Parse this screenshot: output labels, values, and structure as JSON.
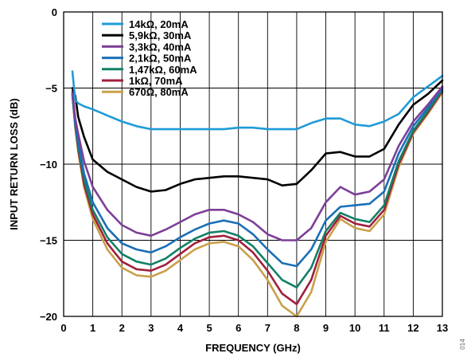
{
  "chart_data": {
    "type": "line",
    "title": "",
    "xlabel": "FREQUENCY (GHz)",
    "ylabel": "INPUT RETURN LOSS (dB)",
    "xlim": [
      0,
      13
    ],
    "ylim": [
      -20,
      0
    ],
    "x_ticks": [
      0,
      1,
      2,
      3,
      4,
      5,
      6,
      7,
      8,
      9,
      10,
      11,
      12,
      13
    ],
    "y_ticks": [
      0,
      -5,
      -10,
      -15,
      -20
    ],
    "grid": true,
    "legend_position": "top-left",
    "figure_code": "014",
    "x": [
      0.3,
      0.4,
      0.5,
      0.7,
      1,
      1.5,
      2,
      2.5,
      3,
      3.5,
      4,
      4.5,
      5,
      5.5,
      6,
      6.5,
      7,
      7.5,
      8,
      8.5,
      9,
      9.5,
      10,
      10.5,
      11,
      11.5,
      12,
      12.5,
      13
    ],
    "series": [
      {
        "name": "14kΩ, 20mA",
        "color": "#1f9bd7",
        "values": [
          -3.9,
          -5.8,
          -6.0,
          -6.2,
          -6.4,
          -6.8,
          -7.2,
          -7.5,
          -7.7,
          -7.7,
          -7.7,
          -7.7,
          -7.7,
          -7.7,
          -7.6,
          -7.6,
          -7.7,
          -7.7,
          -7.7,
          -7.3,
          -7.0,
          -7.0,
          -7.4,
          -7.5,
          -7.2,
          -6.7,
          -5.6,
          -4.9,
          -4.2
        ]
      },
      {
        "name": "5,9kΩ, 30mA",
        "color": "#000000",
        "values": [
          -5.0,
          -5.5,
          -6.9,
          -8.2,
          -9.7,
          -10.5,
          -11.0,
          -11.5,
          -11.8,
          -11.7,
          -11.3,
          -11.0,
          -10.9,
          -10.8,
          -10.8,
          -10.9,
          -11.0,
          -11.4,
          -11.3,
          -10.4,
          -9.3,
          -9.2,
          -9.5,
          -9.5,
          -9.0,
          -7.4,
          -6.1,
          -5.4,
          -4.5
        ]
      },
      {
        "name": "3,3kΩ, 40mA",
        "color": "#7c3f98",
        "values": [
          -5.2,
          -7.0,
          -8.0,
          -9.8,
          -11.5,
          -13.0,
          -14.0,
          -14.5,
          -14.7,
          -14.3,
          -13.8,
          -13.3,
          -13.0,
          -13.0,
          -13.3,
          -13.8,
          -14.6,
          -15.0,
          -15.0,
          -14.2,
          -12.5,
          -11.5,
          -12.0,
          -11.8,
          -11.0,
          -8.8,
          -7.2,
          -6.1,
          -4.9
        ]
      },
      {
        "name": "2,1kΩ, 50mA",
        "color": "#1a6fb8",
        "values": [
          -5.3,
          -7.3,
          -8.5,
          -10.6,
          -12.5,
          -14.2,
          -15.2,
          -15.6,
          -15.8,
          -15.4,
          -14.8,
          -14.3,
          -13.9,
          -13.7,
          -13.9,
          -14.6,
          -15.6,
          -16.5,
          -16.7,
          -15.6,
          -13.7,
          -12.8,
          -12.7,
          -12.6,
          -11.8,
          -9.3,
          -7.5,
          -6.3,
          -5.0
        ]
      },
      {
        "name": "1,47kΩ, 60mA",
        "color": "#138066",
        "values": [
          -5.4,
          -7.4,
          -8.8,
          -11.0,
          -13.0,
          -14.8,
          -15.9,
          -16.4,
          -16.6,
          -16.2,
          -15.5,
          -14.9,
          -14.5,
          -14.4,
          -14.7,
          -15.4,
          -16.5,
          -17.6,
          -18.1,
          -16.8,
          -14.4,
          -13.2,
          -13.6,
          -13.8,
          -12.7,
          -9.8,
          -7.8,
          -6.5,
          -5.1
        ]
      },
      {
        "name": "1kΩ, 70mA",
        "color": "#a0203c",
        "values": [
          -5.4,
          -7.5,
          -9.0,
          -11.3,
          -13.3,
          -15.2,
          -16.4,
          -16.9,
          -17.0,
          -16.6,
          -15.9,
          -15.2,
          -14.8,
          -14.7,
          -15.0,
          -15.8,
          -17.0,
          -18.5,
          -19.2,
          -17.6,
          -14.7,
          -13.4,
          -13.9,
          -14.1,
          -13.0,
          -10.0,
          -7.9,
          -6.6,
          -5.2
        ]
      },
      {
        "name": "670Ω, 80mA",
        "color": "#c9a04a",
        "values": [
          -5.5,
          -7.6,
          -9.2,
          -11.5,
          -13.6,
          -15.6,
          -16.8,
          -17.3,
          -17.4,
          -17.0,
          -16.3,
          -15.6,
          -15.2,
          -15.1,
          -15.4,
          -16.3,
          -17.6,
          -19.3,
          -20.0,
          -18.4,
          -15.1,
          -13.6,
          -14.2,
          -14.4,
          -13.3,
          -10.2,
          -8.0,
          -6.7,
          -5.3
        ]
      }
    ]
  }
}
